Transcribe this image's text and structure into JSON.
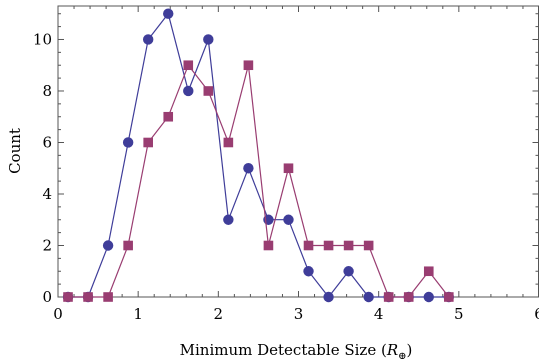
{
  "chart_data": {
    "type": "line",
    "xlabel": "Minimum Detectable Size (",
    "xlabel_italic": "R",
    "xlabel_subscript": "⊕",
    "xlabel_suffix": ")",
    "ylabel": "Count",
    "xlim": [
      0,
      6
    ],
    "ylim": [
      0,
      11.3
    ],
    "x_ticks": [
      0,
      1,
      2,
      3,
      4,
      5,
      6
    ],
    "y_ticks": [
      0,
      2,
      4,
      6,
      8,
      10
    ],
    "frame": "full box, ticks on all sides",
    "grid": false,
    "series": [
      {
        "marker": "circle",
        "color": "#3f3d99",
        "x": [
          0.125,
          0.375,
          0.625,
          0.875,
          1.125,
          1.375,
          1.625,
          1.875,
          2.125,
          2.375,
          2.625,
          2.875,
          3.125,
          3.375,
          3.625,
          3.875,
          4.125,
          4.375,
          4.625,
          4.875
        ],
        "y": [
          0,
          0,
          2,
          6,
          10,
          11,
          8,
          10,
          3,
          5,
          3,
          3,
          1,
          0,
          1,
          0,
          0,
          0,
          0,
          0
        ]
      },
      {
        "marker": "square",
        "color": "#993d71",
        "x": [
          0.125,
          0.375,
          0.625,
          0.875,
          1.125,
          1.375,
          1.625,
          1.875,
          2.125,
          2.375,
          2.625,
          2.875,
          3.125,
          3.375,
          3.625,
          3.875,
          4.125,
          4.375,
          4.625,
          4.875
        ],
        "y": [
          0,
          0,
          0,
          2,
          6,
          7,
          9,
          8,
          6,
          9,
          2,
          5,
          2,
          2,
          2,
          2,
          0,
          0,
          1,
          0
        ]
      }
    ]
  }
}
